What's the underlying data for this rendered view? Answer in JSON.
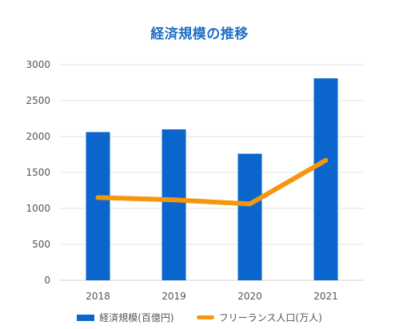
{
  "chart_data": {
    "type": "bar",
    "title": "経済規模の推移",
    "categories": [
      "2018",
      "2019",
      "2020",
      "2021"
    ],
    "ylim": [
      0,
      3000
    ],
    "yticks": [
      0,
      500,
      1000,
      1500,
      2000,
      2500,
      3000
    ],
    "grid": true,
    "legend_position": "bottom",
    "series": [
      {
        "name": "経済規模(百億円)",
        "type": "bar",
        "color": "#0a66cc",
        "values": [
          2062,
          2100,
          1761,
          2810
        ]
      },
      {
        "name": "フリーランス人口(万人)",
        "type": "line",
        "color": "#f5960f",
        "values": [
          1151,
          1119,
          1062,
          1670
        ]
      }
    ]
  }
}
